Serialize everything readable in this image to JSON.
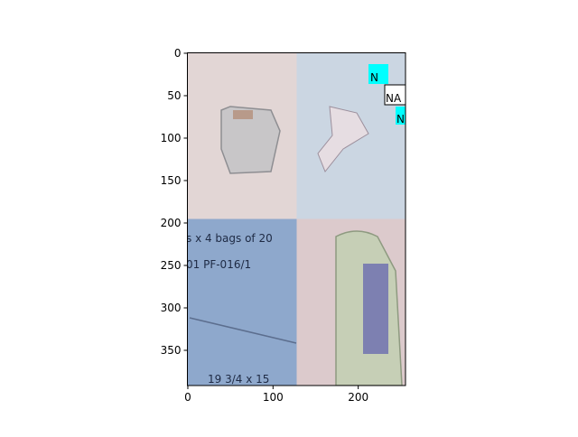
{
  "chart_data": {
    "type": "image",
    "xlim": [
      -0.5,
      255.5
    ],
    "ylim": [
      391.5,
      -0.5
    ],
    "xticks": [
      0,
      100,
      200
    ],
    "yticks": [
      0,
      50,
      100,
      150,
      200,
      250,
      300,
      350
    ],
    "annotations": [
      "N",
      "NA",
      "N"
    ],
    "image_texts": [
      "s x 4 bags of 20",
      "01 PF-016/1",
      "19 3/4 x 15"
    ]
  }
}
